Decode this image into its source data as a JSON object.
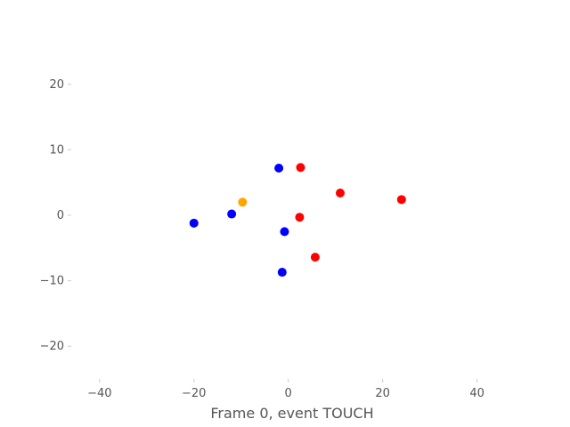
{
  "chart_data": {
    "type": "scatter",
    "title": "",
    "xlabel": "Frame 0, event TOUCH",
    "ylabel": "",
    "xlim": [
      -46,
      48
    ],
    "ylim": [
      -25,
      25
    ],
    "xticks": [
      -40,
      -20,
      0,
      20,
      40
    ],
    "yticks": [
      -20,
      -10,
      0,
      10,
      20
    ],
    "xtick_labels": [
      "−40",
      "−20",
      "0",
      "20",
      "40"
    ],
    "ytick_labels": [
      "−20",
      "−10",
      "0",
      "10",
      "20"
    ],
    "grid": false,
    "points": [
      {
        "x": -2,
        "y": 7.2,
        "color": "#0000ff"
      },
      {
        "x": -12,
        "y": 0.2,
        "color": "#0000ff"
      },
      {
        "x": -20,
        "y": -1.2,
        "color": "#0000ff"
      },
      {
        "x": -0.8,
        "y": -2.5,
        "color": "#0000ff"
      },
      {
        "x": -1.3,
        "y": -8.7,
        "color": "#0000ff"
      },
      {
        "x": 2.6,
        "y": 7.3,
        "color": "#ff0000"
      },
      {
        "x": 11,
        "y": 3.4,
        "color": "#ff0000"
      },
      {
        "x": 24,
        "y": 2.4,
        "color": "#ff0000"
      },
      {
        "x": 2.4,
        "y": -0.3,
        "color": "#ff0000"
      },
      {
        "x": 5.7,
        "y": -6.4,
        "color": "#ff0000"
      },
      {
        "x": -9.7,
        "y": 2.0,
        "color": "#ffa500"
      }
    ]
  }
}
